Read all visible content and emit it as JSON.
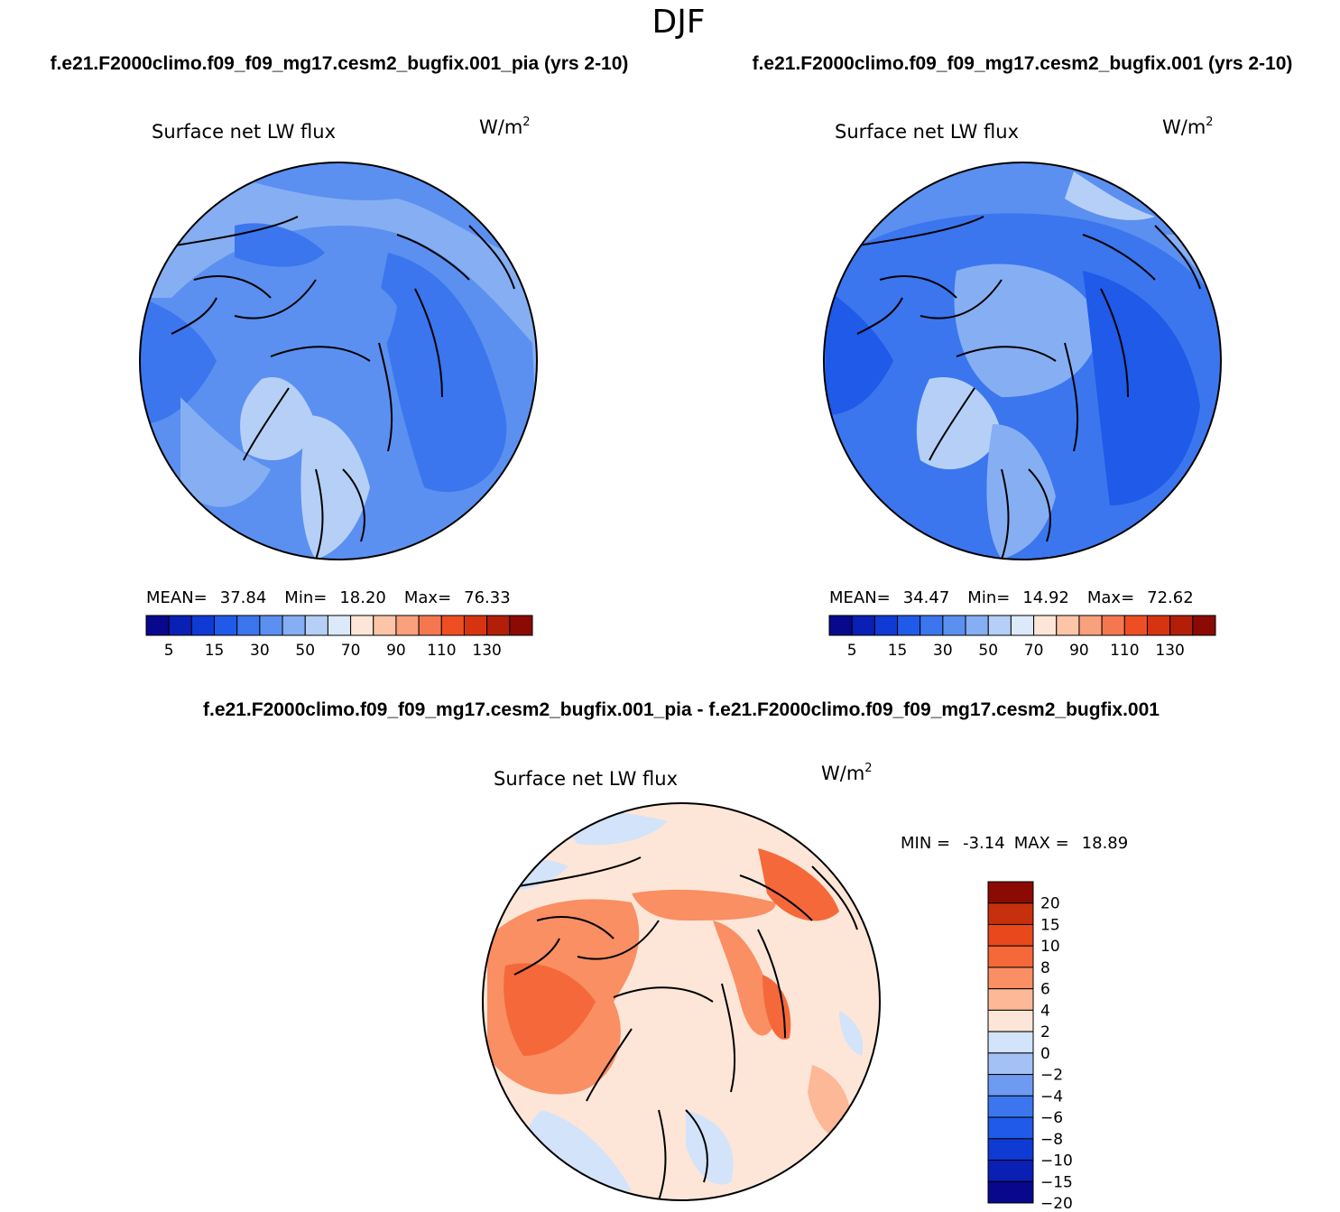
{
  "figure": {
    "season": "DJF",
    "case_a": "f.e21.F2000climo.f09_f09_mg17.cesm2_bugfix.001_pia (yrs 2-10)",
    "case_b": "f.e21.F2000climo.f09_f09_mg17.cesm2_bugfix.001 (yrs 2-10)",
    "diff_title": "f.e21.F2000climo.f09_f09_mg17.cesm2_bugfix.001_pia - f.e21.F2000climo.f09_f09_mg17.cesm2_bugfix.001"
  },
  "colors": {
    "full_field": [
      "#08088c",
      "#0a1fb4",
      "#0f3ad4",
      "#1f5ae8",
      "#3b76ee",
      "#5b90f0",
      "#86aef2",
      "#b5cff6",
      "#dce9fb",
      "#fde6d8",
      "#fcc5a8",
      "#f9a07d",
      "#f5774f",
      "#ee4f22",
      "#d63410",
      "#b31e08",
      "#8c0a04"
    ],
    "difference": [
      "#08088c",
      "#0a1fb4",
      "#0f3ad4",
      "#1f5ae8",
      "#3b76ee",
      "#6e9af2",
      "#a3c1f5",
      "#d3e3f9",
      "#fde6d8",
      "#fcb897",
      "#f98f63",
      "#f5683a",
      "#e8481b",
      "#c6300c",
      "#8c0a04"
    ]
  },
  "chart_data": [
    {
      "type": "heatmap",
      "name": "panel-case-a",
      "title": "Surface net LW flux",
      "units": "W/m²",
      "units_base": "W/m",
      "units_exp": "2",
      "stats": {
        "mean_label": "MEAN=",
        "mean": "37.84",
        "min_label": "Min=",
        "min": "18.20",
        "max_label": "Max=",
        "max": "76.33"
      },
      "contour_levels": [
        5,
        10,
        15,
        20,
        25,
        30,
        35,
        40,
        50,
        60,
        70,
        80,
        90,
        100,
        110,
        120,
        130
      ],
      "colorbar_labels": [
        "5",
        "15",
        "30",
        "50",
        "70",
        "90",
        "110",
        "130"
      ]
    },
    {
      "type": "heatmap",
      "name": "panel-case-b",
      "title": "Surface net LW flux",
      "units": "W/m²",
      "units_base": "W/m",
      "units_exp": "2",
      "stats": {
        "mean_label": "MEAN=",
        "mean": "34.47",
        "min_label": "Min=",
        "min": "14.92",
        "max_label": "Max=",
        "max": "72.62"
      },
      "contour_levels": [
        5,
        10,
        15,
        20,
        25,
        30,
        35,
        40,
        50,
        60,
        70,
        80,
        90,
        100,
        110,
        120,
        130
      ],
      "colorbar_labels": [
        "5",
        "15",
        "30",
        "50",
        "70",
        "90",
        "110",
        "130"
      ]
    },
    {
      "type": "heatmap",
      "name": "panel-difference",
      "title": "Surface net LW flux",
      "units": "W/m²",
      "units_base": "W/m",
      "units_exp": "2",
      "stats": {
        "min_label": "MIN =",
        "min": "-3.14",
        "max_label": "MAX =",
        "max": "18.89"
      },
      "contour_levels": [
        -20,
        -15,
        -10,
        -8,
        -6,
        -4,
        -2,
        0,
        2,
        4,
        6,
        8,
        10,
        15,
        20
      ],
      "colorbar_labels": [
        "20",
        "15",
        "10",
        "8",
        "6",
        "4",
        "2",
        "0",
        "−2",
        "−4",
        "−6",
        "−8",
        "−10",
        "−15",
        "−20"
      ]
    }
  ]
}
